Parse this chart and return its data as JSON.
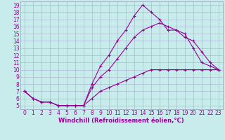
{
  "xlabel": "Windchill (Refroidissement éolien,°C)",
  "background_color": "#c8ecec",
  "line_color": "#990099",
  "grid_color": "#aaaacc",
  "spine_color": "#9999bb",
  "xlim": [
    -0.5,
    23.5
  ],
  "ylim": [
    4.5,
    19.5
  ],
  "xticks": [
    0,
    1,
    2,
    3,
    4,
    5,
    6,
    7,
    8,
    9,
    10,
    11,
    12,
    13,
    14,
    15,
    16,
    17,
    18,
    19,
    20,
    21,
    22,
    23
  ],
  "yticks": [
    5,
    6,
    7,
    8,
    9,
    10,
    11,
    12,
    13,
    14,
    15,
    16,
    17,
    18,
    19
  ],
  "line1_x": [
    0,
    1,
    2,
    3,
    4,
    5,
    6,
    7,
    8,
    9,
    10,
    11,
    12,
    13,
    14,
    15,
    16,
    17,
    18,
    19,
    20,
    21,
    22,
    23
  ],
  "line1_y": [
    7,
    6,
    5.5,
    5.5,
    5,
    5,
    5,
    5,
    8,
    10.5,
    12,
    14,
    15.5,
    17.5,
    19,
    18,
    17,
    15.5,
    15.5,
    15,
    13,
    11,
    10.5,
    10
  ],
  "line2_x": [
    0,
    1,
    2,
    3,
    4,
    5,
    6,
    7,
    8,
    9,
    10,
    11,
    12,
    13,
    14,
    15,
    16,
    17,
    18,
    19,
    20,
    21,
    22,
    23
  ],
  "line2_y": [
    7,
    6,
    5.5,
    5.5,
    5,
    5,
    5,
    5,
    7.5,
    9,
    10,
    11.5,
    13,
    14.5,
    15.5,
    16,
    16.5,
    16,
    15.5,
    14.5,
    14,
    12.5,
    11,
    10
  ],
  "line3_x": [
    0,
    1,
    2,
    3,
    4,
    5,
    6,
    7,
    8,
    9,
    10,
    11,
    12,
    13,
    14,
    15,
    16,
    17,
    18,
    19,
    20,
    21,
    22,
    23
  ],
  "line3_y": [
    7,
    6,
    5.5,
    5.5,
    5,
    5,
    5,
    5,
    6,
    7,
    7.5,
    8,
    8.5,
    9,
    9.5,
    10,
    10,
    10,
    10,
    10,
    10,
    10,
    10,
    10
  ],
  "tick_fontsize": 5.5,
  "xlabel_fontsize": 6.0,
  "marker_size": 3,
  "linewidth": 0.8
}
